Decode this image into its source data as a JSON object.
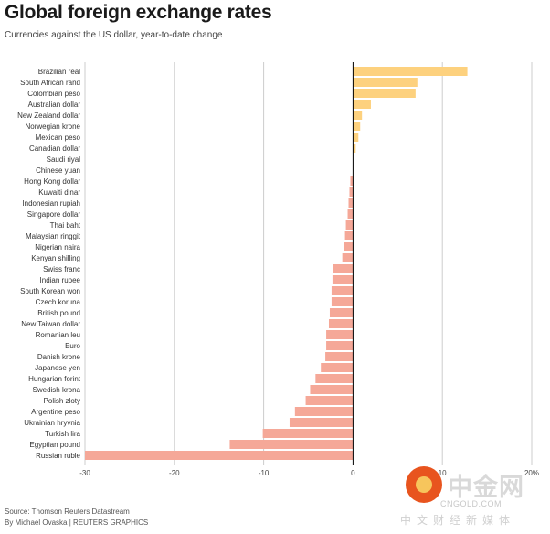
{
  "header": {
    "title": "Global foreign exchange rates",
    "subtitle": "Currencies against the US dollar, year-to-date change"
  },
  "footer": {
    "source": "Source: Thomson Reuters Datastream",
    "credit": "By Michael Ovaska | REUTERS GRAPHICS"
  },
  "watermark": {
    "name": "中金网",
    "domain": "CNGOLD.COM",
    "tagline": "中文财经新媒体"
  },
  "colors": {
    "positive": "#fdd17e",
    "negative": "#f5a898",
    "axis": "#000000",
    "grid": "#cccccc"
  },
  "chart_data": {
    "type": "bar",
    "orientation": "horizontal",
    "title": "Global foreign exchange rates",
    "subtitle": "Currencies against the US dollar, year-to-date change",
    "xlim": [
      -30,
      20
    ],
    "xticks": [
      -30,
      -20,
      -10,
      0,
      10,
      20
    ],
    "xtick_labels": [
      "-30",
      "-20",
      "-10",
      "0",
      "10",
      "20%"
    ],
    "grid": true,
    "categories": [
      "Brazilian real",
      "South African rand",
      "Colombian peso",
      "Australian dollar",
      "New Zealand dollar",
      "Norwegian krone",
      "Mexican peso",
      "Canadian dollar",
      "Saudi riyal",
      "Chinese yuan",
      "Hong Kong dollar",
      "Kuwaiti dinar",
      "Indonesian rupiah",
      "Singapore dollar",
      "Thai baht",
      "Malaysian ringgit",
      "Nigerian naira",
      "Kenyan shilling",
      "Swiss franc",
      "Indian rupee",
      "South Korean won",
      "Czech koruna",
      "British pound",
      "New Taiwan dollar",
      "Romanian leu",
      "Euro",
      "Danish krone",
      "Japanese yen",
      "Hungarian forint",
      "Swedish krona",
      "Polish zloty",
      "Argentine peso",
      "Ukrainian hryvnia",
      "Turkish lira",
      "Egyptian pound",
      "Russian ruble"
    ],
    "values": [
      12.8,
      7.2,
      7.0,
      2.0,
      1.0,
      0.8,
      0.6,
      0.3,
      0.0,
      0.0,
      -0.3,
      -0.4,
      -0.5,
      -0.6,
      -0.8,
      -0.9,
      -1.0,
      -1.2,
      -2.2,
      -2.3,
      -2.4,
      -2.4,
      -2.6,
      -2.7,
      -3.0,
      -3.0,
      -3.1,
      -3.6,
      -4.2,
      -4.8,
      -5.3,
      -6.5,
      -7.1,
      -10.1,
      -13.8,
      -30.0
    ]
  }
}
